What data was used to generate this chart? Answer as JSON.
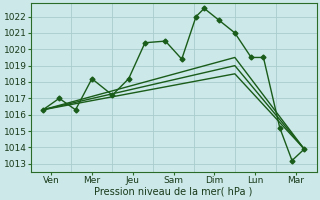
{
  "background_color": "#cce8e8",
  "grid_color": "#aacccc",
  "line_color": "#1a5c1a",
  "x_labels": [
    "Ven",
    "Mer",
    "Jeu",
    "Sam",
    "Dim",
    "Lun",
    "Mar"
  ],
  "x_tick_positions": [
    0.5,
    1.5,
    2.5,
    3.5,
    4.5,
    5.5,
    6.5
  ],
  "x_vline_positions": [
    0,
    1,
    2,
    3,
    4,
    5,
    6,
    7
  ],
  "xlabel": "Pression niveau de la mer( hPa )",
  "ylim": [
    1012.5,
    1022.8
  ],
  "yticks": [
    1013,
    1014,
    1015,
    1016,
    1017,
    1018,
    1019,
    1020,
    1021,
    1022
  ],
  "xlim": [
    0,
    7
  ],
  "series": [
    {
      "x": [
        0.3,
        0.7,
        1.1,
        1.5,
        2.0,
        2.4,
        2.8,
        3.3,
        3.7,
        4.05,
        4.25,
        4.6,
        5.0,
        5.4,
        5.7,
        6.1,
        6.4,
        6.7
      ],
      "y": [
        1016.3,
        1017.0,
        1016.3,
        1018.2,
        1017.2,
        1018.2,
        1020.4,
        1020.5,
        1019.4,
        1022.0,
        1022.5,
        1021.8,
        1021.0,
        1019.5,
        1019.5,
        1015.2,
        1013.2,
        1013.9
      ],
      "marker": "D",
      "markersize": 2.5,
      "linewidth": 1.0
    },
    {
      "x": [
        0.3,
        5.0,
        6.7
      ],
      "y": [
        1016.3,
        1019.5,
        1013.9
      ],
      "marker": null,
      "markersize": 0,
      "linewidth": 1.0
    },
    {
      "x": [
        0.3,
        5.0,
        6.7
      ],
      "y": [
        1016.3,
        1019.0,
        1013.9
      ],
      "marker": null,
      "markersize": 0,
      "linewidth": 1.0
    },
    {
      "x": [
        0.3,
        5.0,
        6.7
      ],
      "y": [
        1016.3,
        1018.5,
        1013.9
      ],
      "marker": null,
      "markersize": 0,
      "linewidth": 1.0
    }
  ]
}
